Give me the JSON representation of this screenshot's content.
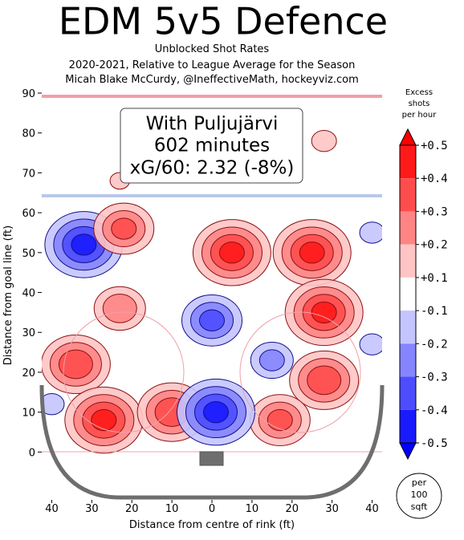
{
  "chart_data": {
    "type": "contour",
    "title": "EDM 5v5 Defence",
    "subtitle": [
      "Unblocked Shot Rates",
      "2020-2021, Relative to League Average for the Season",
      "Micah Blake McCurdy, @IneffectiveMath, hockeyviz.com"
    ],
    "annotation": [
      "With Puljujärvi",
      "602 minutes",
      "xG/60: 2.32 (-8%)"
    ],
    "x_label": "Distance from centre of rink (ft)",
    "y_label": "Distance from goal line (ft)",
    "xlim": [
      42.5,
      -42.5
    ],
    "ylim": [
      -12,
      90
    ],
    "xticks": [
      40,
      30,
      20,
      10,
      0,
      {
        "value": -10,
        "label": "10"
      },
      {
        "value": -20,
        "label": "20"
      },
      {
        "value": -30,
        "label": "30"
      },
      {
        "value": -40,
        "label": "40"
      }
    ],
    "yticks": [
      0,
      10,
      20,
      30,
      40,
      50,
      60,
      70,
      80,
      90
    ],
    "colorbar_label": [
      "Excess",
      "shots",
      "per hour"
    ],
    "colorbar_ticks": [
      {
        "value": 0.5,
        "label": "+0.5"
      },
      {
        "value": 0.4,
        "label": "+0.4"
      },
      {
        "value": 0.3,
        "label": "+0.3"
      },
      {
        "value": 0.2,
        "label": "+0.2"
      },
      {
        "value": 0.1,
        "label": "+0.1"
      },
      {
        "value": -0.1,
        "label": "-0.1"
      },
      {
        "value": -0.2,
        "label": "-0.2"
      },
      {
        "value": -0.3,
        "label": "-0.3"
      },
      {
        "value": -0.4,
        "label": "-0.4"
      },
      {
        "value": -0.5,
        "label": "-0.5"
      }
    ],
    "colorbar_colors": [
      "#ff1a1a",
      "#ff4d4d",
      "#ff8585",
      "#ffc4c4",
      "#ffffff",
      "#c4c4ff",
      "#8585ff",
      "#4d4dff",
      "#1a1aff"
    ],
    "unit_note": [
      "per",
      "100",
      "sqft"
    ],
    "spots": {
      "x": [
        32,
        22,
        -5,
        -25,
        -28,
        -28,
        -17,
        34,
        27,
        10,
        23,
        0,
        -1,
        -15,
        -28,
        23,
        -40,
        40,
        -40
      ],
      "y": [
        52,
        56,
        50,
        50,
        35,
        18,
        8,
        22,
        8,
        10,
        36,
        33,
        10,
        23,
        78,
        68,
        27,
        12,
        55
      ],
      "values": [
        -0.45,
        0.35,
        0.45,
        0.45,
        0.45,
        0.4,
        0.35,
        0.4,
        0.45,
        0.4,
        0.3,
        -0.35,
        -0.45,
        -0.25,
        0.15,
        0.12,
        -0.15,
        -0.15,
        -0.15
      ]
    }
  }
}
